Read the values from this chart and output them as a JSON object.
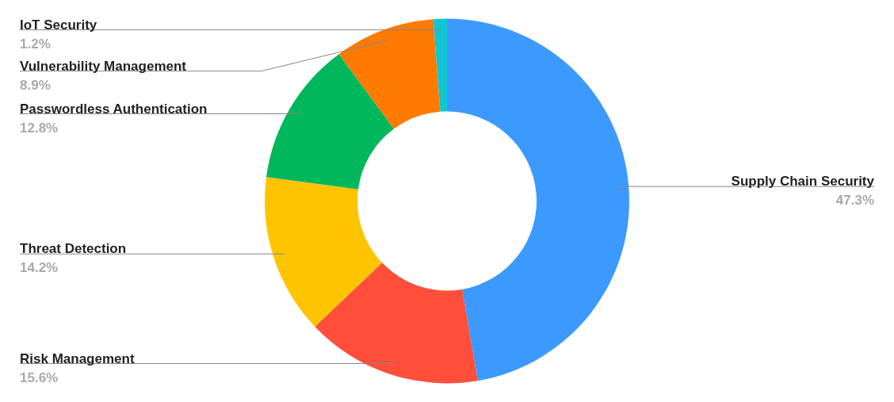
{
  "chart_data": {
    "type": "donut",
    "categories": [
      "Supply Chain Security",
      "Risk Management",
      "Threat Detection",
      "Passwordless Authentication",
      "Vulnerability Management",
      "IoT Security"
    ],
    "values": [
      47.3,
      15.6,
      14.2,
      12.8,
      8.9,
      1.2
    ],
    "value_labels": [
      "47.3%",
      "15.6%",
      "14.2%",
      "12.8%",
      "8.9%",
      "1.2%"
    ],
    "colors": [
      "#3c9aff",
      "#ff4e3a",
      "#ffc400",
      "#00b75c",
      "#ff7a00",
      "#12c5d2"
    ]
  }
}
